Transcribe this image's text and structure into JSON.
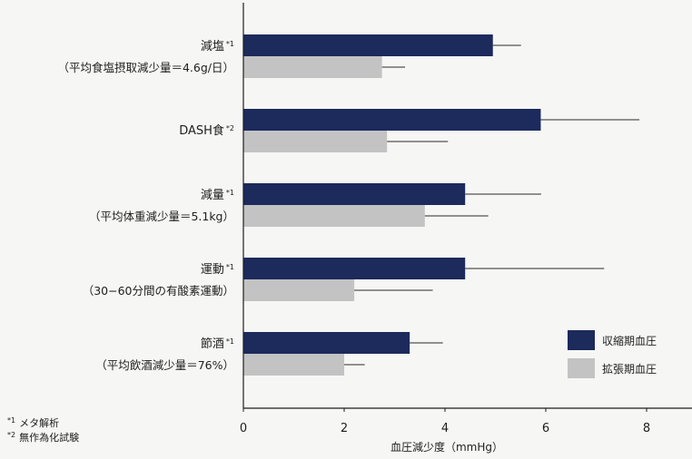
{
  "chart_data": {
    "type": "bar",
    "orientation": "horizontal",
    "categories": [
      {
        "label": "減塩",
        "marker": "*1",
        "note": "（平均食塩摂取減少量＝4.6g/日）"
      },
      {
        "label": "DASH食",
        "marker": "*2",
        "note": ""
      },
      {
        "label": "減量",
        "marker": "*1",
        "note": "（平均体重減少量＝5.1kg）"
      },
      {
        "label": "運動",
        "marker": "*1",
        "note": "（30−60分間の有酸素運動）"
      },
      {
        "label": "節酒",
        "marker": "*1",
        "note": "（平均飲酒減少量＝76%）"
      }
    ],
    "series": [
      {
        "name": "収縮期血圧",
        "color": "#1c2a5c",
        "values": [
          4.95,
          5.9,
          4.4,
          4.4,
          3.3
        ],
        "error": [
          0.55,
          1.95,
          1.5,
          2.75,
          0.65
        ]
      },
      {
        "name": "拡張期血圧",
        "color": "#c3c3c3",
        "values": [
          2.75,
          2.85,
          3.6,
          2.2,
          2.0
        ],
        "error": [
          0.45,
          1.2,
          1.25,
          1.55,
          0.4
        ]
      }
    ],
    "xlabel": "血圧減少度（mmHg）",
    "ylabel": "",
    "xlim": [
      0,
      9
    ],
    "xticks": [
      "0",
      "2",
      "4",
      "6",
      "8"
    ],
    "grid": false,
    "legend_position": "bottom-right",
    "footnotes": [
      {
        "marker": "*1",
        "text": "メタ解析"
      },
      {
        "marker": "*2",
        "text": "無作為化試験"
      }
    ]
  }
}
